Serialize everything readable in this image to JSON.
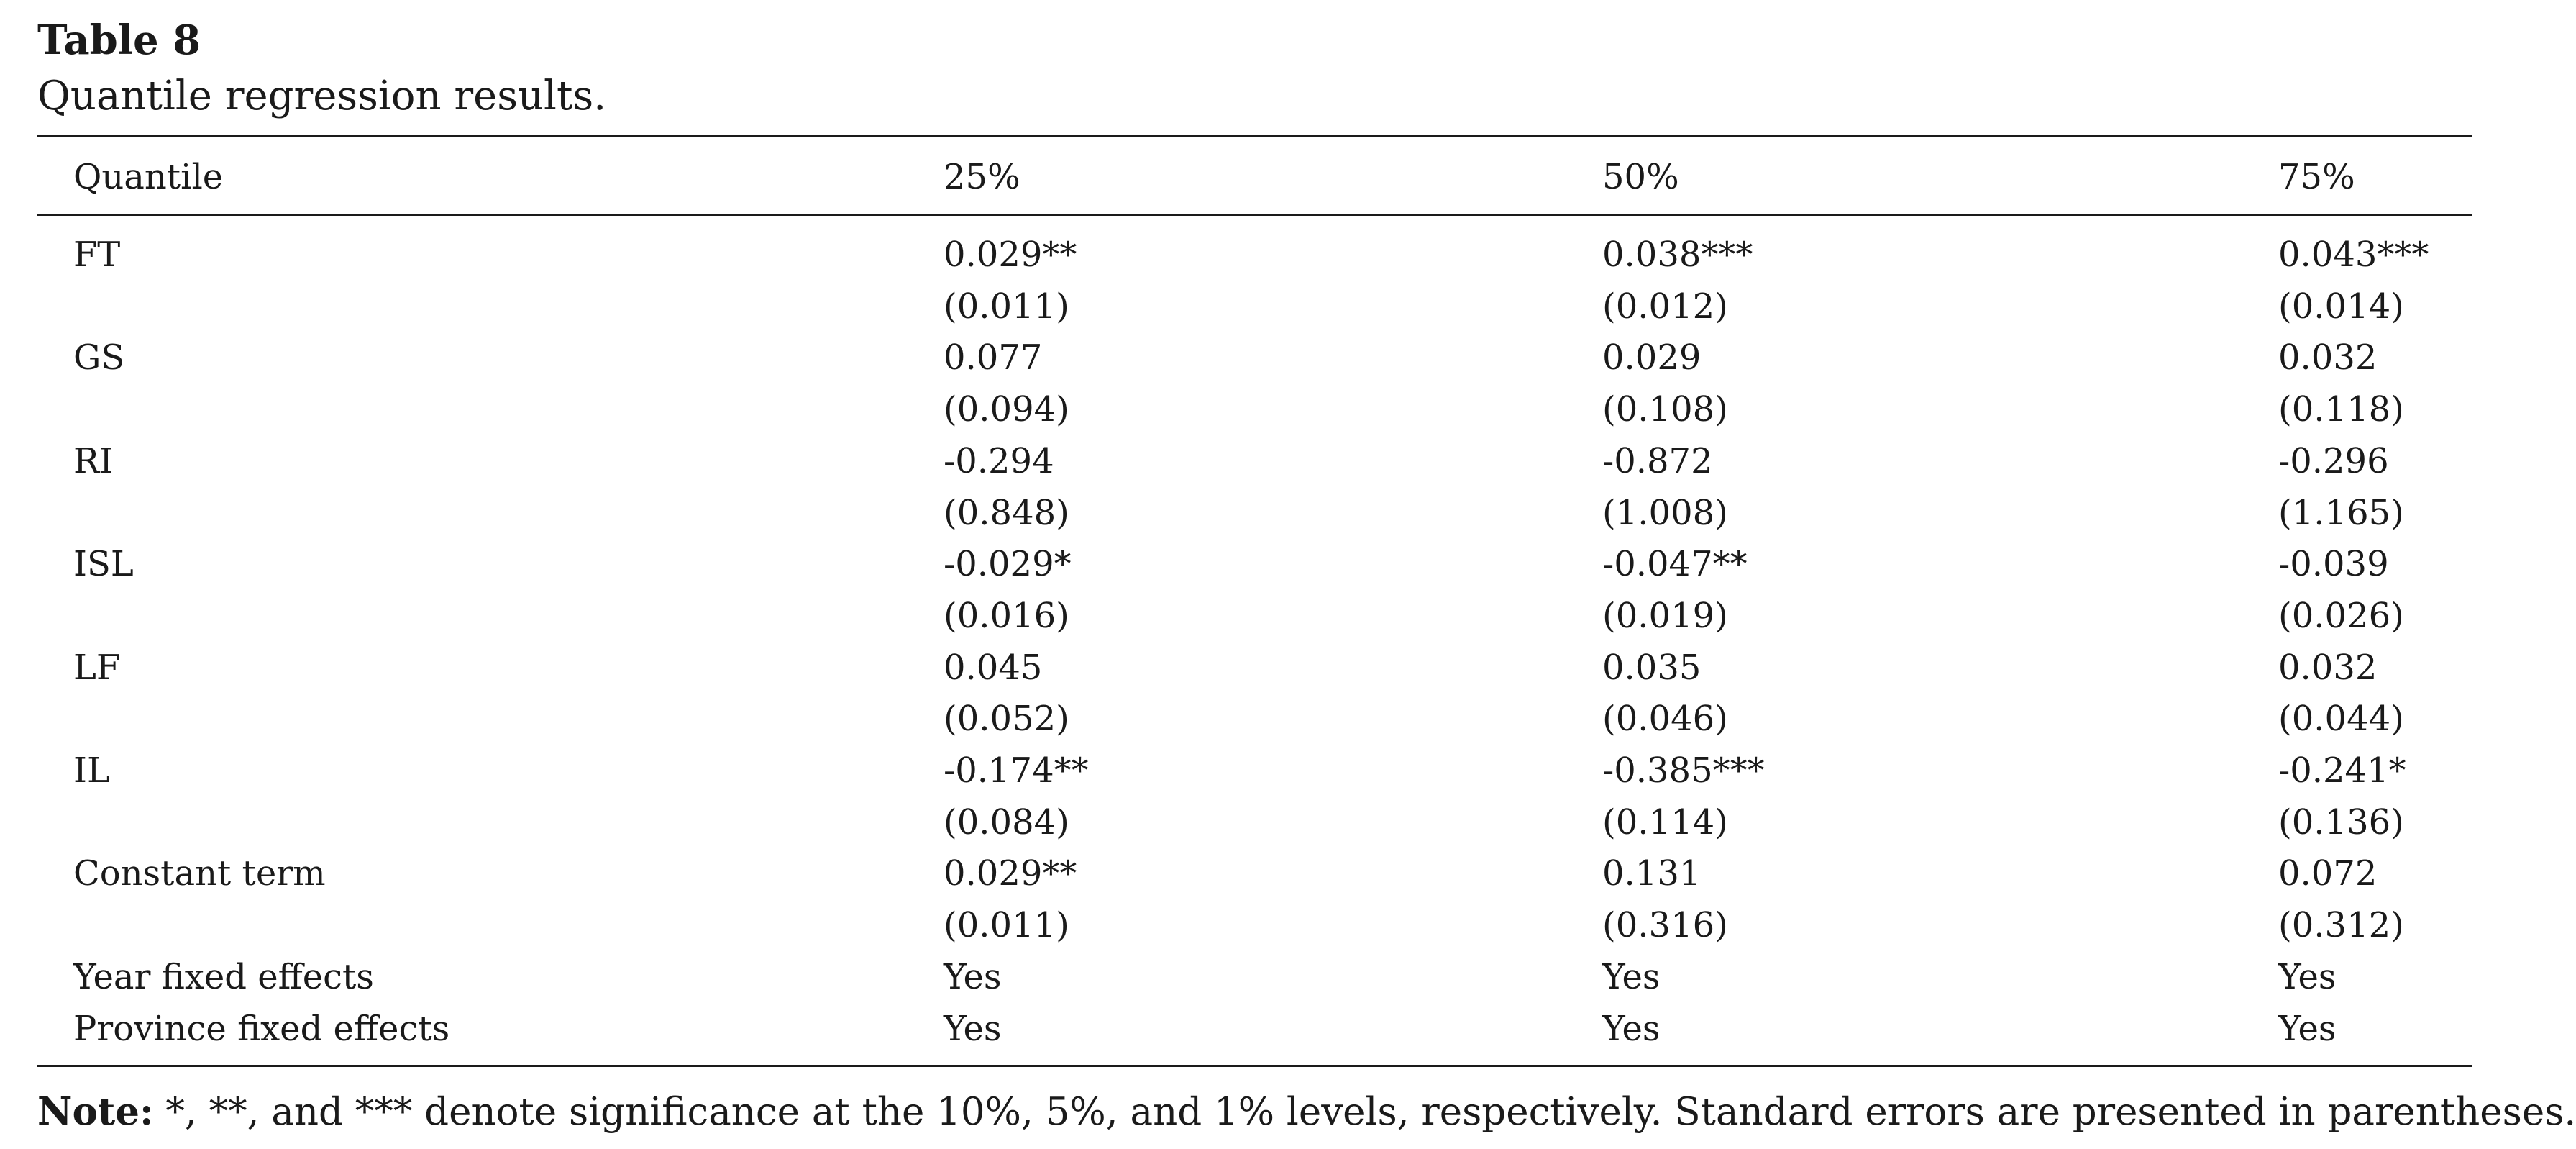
{
  "table": {
    "label": "Table 8",
    "caption": "Quantile regression results.",
    "header": [
      "Quantile",
      "25%",
      "50%",
      "75%"
    ],
    "rows": [
      [
        "FT",
        "0.029**",
        "0.038***",
        "0.043***"
      ],
      [
        "",
        "(0.011)",
        "(0.012)",
        "(0.014)"
      ],
      [
        "GS",
        "0.077",
        "0.029",
        "0.032"
      ],
      [
        "",
        "(0.094)",
        "(0.108)",
        "(0.118)"
      ],
      [
        "RI",
        "-0.294",
        "-0.872",
        "-0.296"
      ],
      [
        "",
        "(0.848)",
        "(1.008)",
        "(1.165)"
      ],
      [
        "ISL",
        "-0.029*",
        "-0.047**",
        "-0.039"
      ],
      [
        "",
        "(0.016)",
        "(0.019)",
        "(0.026)"
      ],
      [
        "LF",
        "0.045",
        "0.035",
        "0.032"
      ],
      [
        "",
        "(0.052)",
        "(0.046)",
        "(0.044)"
      ],
      [
        "IL",
        "-0.174**",
        "-0.385***",
        "-0.241*"
      ],
      [
        "",
        "(0.084)",
        "(0.114)",
        "(0.136)"
      ],
      [
        "Constant term",
        "0.029**",
        "0.131",
        "0.072"
      ],
      [
        "",
        "(0.011)",
        "(0.316)",
        "(0.312)"
      ],
      [
        "Year fixed effects",
        "Yes",
        "Yes",
        "Yes"
      ],
      [
        "Province fixed effects",
        "Yes",
        "Yes",
        "Yes"
      ]
    ],
    "note_label": "Note:",
    "note_text": " *, **, and *** denote significance at the 10%, 5%, and 1% levels, respectively. Standard errors are presented in parentheses."
  }
}
